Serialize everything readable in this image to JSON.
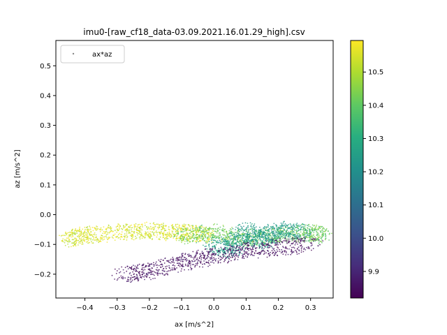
{
  "chart_data": {
    "type": "scatter",
    "title": "imu0-[raw_cf18_data-03.09.2021.16.01.29_high].csv",
    "xlabel": "ax [m/s^2]",
    "ylabel": "az [m/s^2]",
    "xlim": [
      -0.49,
      0.37
    ],
    "ylim": [
      -0.28,
      0.585
    ],
    "x_ticks": [
      -0.4,
      -0.3,
      -0.2,
      -0.1,
      0.0,
      0.1,
      0.2,
      0.3
    ],
    "x_tick_labels": [
      "−0.4",
      "−0.3",
      "−0.2",
      "−0.1",
      "0.0",
      "0.1",
      "0.2",
      "0.3"
    ],
    "y_ticks": [
      -0.2,
      -0.1,
      0.0,
      0.1,
      0.2,
      0.3,
      0.4,
      0.5
    ],
    "y_tick_labels": [
      "−0.2",
      "−0.1",
      "0.0",
      "0.1",
      "0.2",
      "0.3",
      "0.4",
      "0.5"
    ],
    "grid": false,
    "legend": {
      "position": "upper-left",
      "entries": [
        "ax*az"
      ]
    },
    "colorbar": {
      "colormap": "viridis",
      "range": [
        9.82,
        10.595
      ],
      "ticks": [
        9.9,
        10.0,
        10.1,
        10.2,
        10.3,
        10.4,
        10.5
      ],
      "tick_labels": [
        "9.9",
        "10.0",
        "10.1",
        "10.2",
        "10.3",
        "10.4",
        "10.5"
      ]
    },
    "clusters": [
      {
        "color_value": 10.55,
        "description": "yellow band",
        "x_range": [
          -0.45,
          0.0
        ],
        "points": [
          [
            -0.45,
            -0.08
          ],
          [
            -0.4,
            -0.07
          ],
          [
            -0.3,
            -0.06
          ],
          [
            -0.2,
            -0.055
          ],
          [
            -0.1,
            -0.06
          ],
          [
            -0.02,
            -0.07
          ]
        ]
      },
      {
        "color_value": 10.42,
        "description": "yellow-green band",
        "points": [
          [
            -0.1,
            -0.07
          ],
          [
            0.0,
            -0.06
          ],
          [
            0.1,
            -0.08
          ],
          [
            0.2,
            -0.07
          ],
          [
            0.3,
            -0.06
          ],
          [
            0.33,
            -0.07
          ]
        ]
      },
      {
        "color_value": 10.25,
        "description": "teal loops",
        "points": [
          [
            0.0,
            -0.1
          ],
          [
            0.05,
            -0.12
          ],
          [
            0.1,
            -0.05
          ],
          [
            0.15,
            -0.09
          ],
          [
            0.2,
            -0.05
          ],
          [
            0.28,
            -0.06
          ]
        ]
      },
      {
        "color_value": 9.85,
        "description": "purple diagonal band",
        "points": [
          [
            -0.28,
            -0.2
          ],
          [
            -0.2,
            -0.19
          ],
          [
            -0.1,
            -0.16
          ],
          [
            0.0,
            -0.14
          ],
          [
            0.1,
            -0.12
          ],
          [
            0.2,
            -0.11
          ],
          [
            0.3,
            -0.1
          ]
        ]
      }
    ]
  }
}
